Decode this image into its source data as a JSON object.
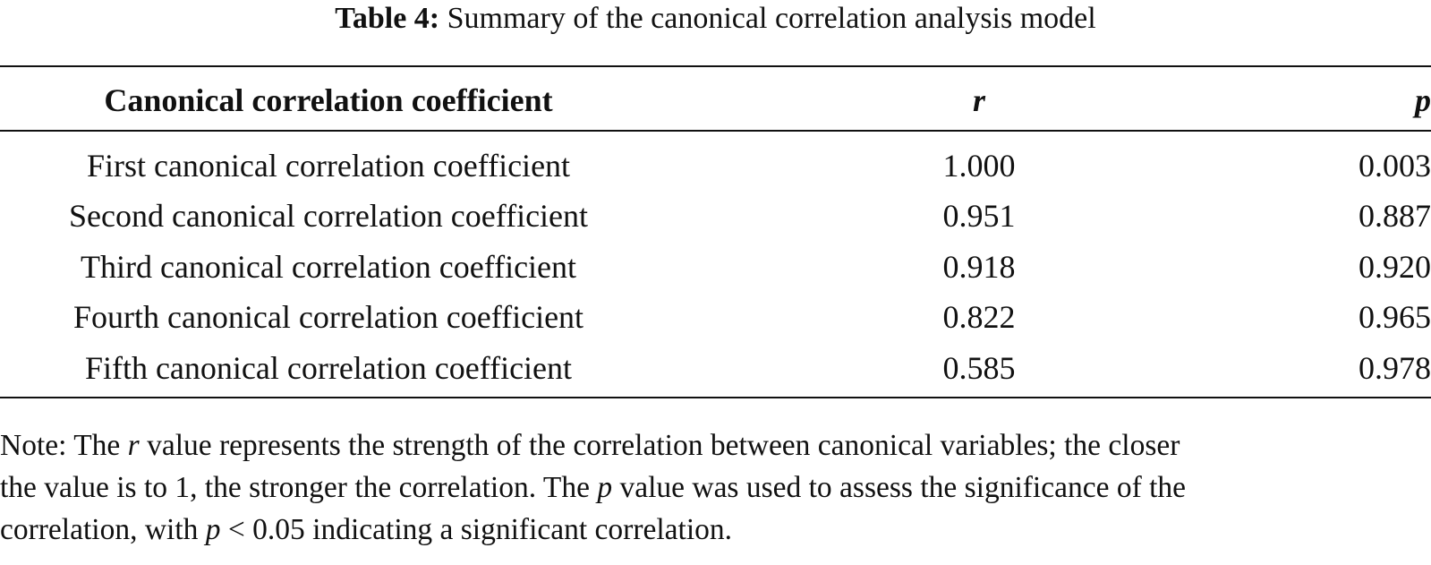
{
  "caption": {
    "label": "Table 4:",
    "title": "Summary of the canonical correlation analysis model"
  },
  "table": {
    "headers": {
      "name": "Canonical correlation coefficient",
      "r": "r",
      "p": "p"
    },
    "rows": [
      {
        "name": "First canonical correlation coefficient",
        "r": "1.000",
        "p": "0.003"
      },
      {
        "name": "Second canonical correlation coefficient",
        "r": "0.951",
        "p": "0.887"
      },
      {
        "name": "Third canonical correlation coefficient",
        "r": "0.918",
        "p": "0.920"
      },
      {
        "name": "Fourth canonical correlation coefficient",
        "r": "0.822",
        "p": "0.965"
      },
      {
        "name": "Fifth canonical correlation coefficient",
        "r": "0.585",
        "p": "0.978"
      }
    ]
  },
  "note": {
    "line1_a": "Note: The ",
    "line1_var": "r",
    "line1_b": " value represents the strength of the correlation between canonical variables; the closer",
    "line2_a": "the value is to 1, the stronger the correlation. The ",
    "line2_var": "p",
    "line2_b": " value was used to assess the significance of the",
    "line3_a": "correlation, with ",
    "line3_var": "p",
    "line3_b": " < 0.05 indicating a significant correlation."
  }
}
